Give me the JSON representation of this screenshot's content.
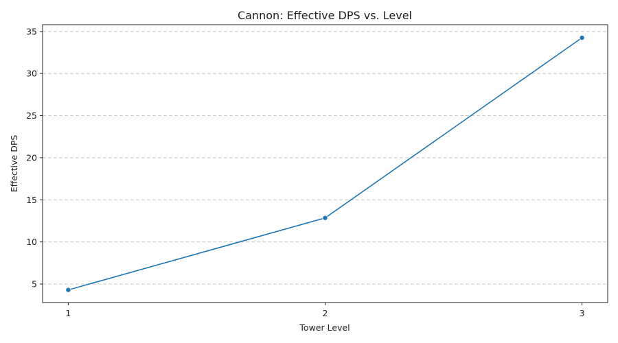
{
  "chart_data": {
    "type": "line",
    "title": "Cannon: Effective DPS vs. Level",
    "xlabel": "Tower Level",
    "ylabel": "Effective DPS",
    "x": [
      1,
      2,
      3
    ],
    "series": [
      {
        "values": [
          4.3,
          12.85,
          34.25
        ],
        "color": "#1f77b4",
        "marker": "circle"
      }
    ],
    "xticks": [
      1,
      2,
      3
    ],
    "yticks": [
      5,
      10,
      15,
      20,
      25,
      30,
      35
    ],
    "xlim": [
      0.9,
      3.1
    ],
    "ylim": [
      2.8,
      35.8
    ],
    "grid": {
      "y": true,
      "x": false,
      "style": "dashed"
    },
    "legend": null
  }
}
